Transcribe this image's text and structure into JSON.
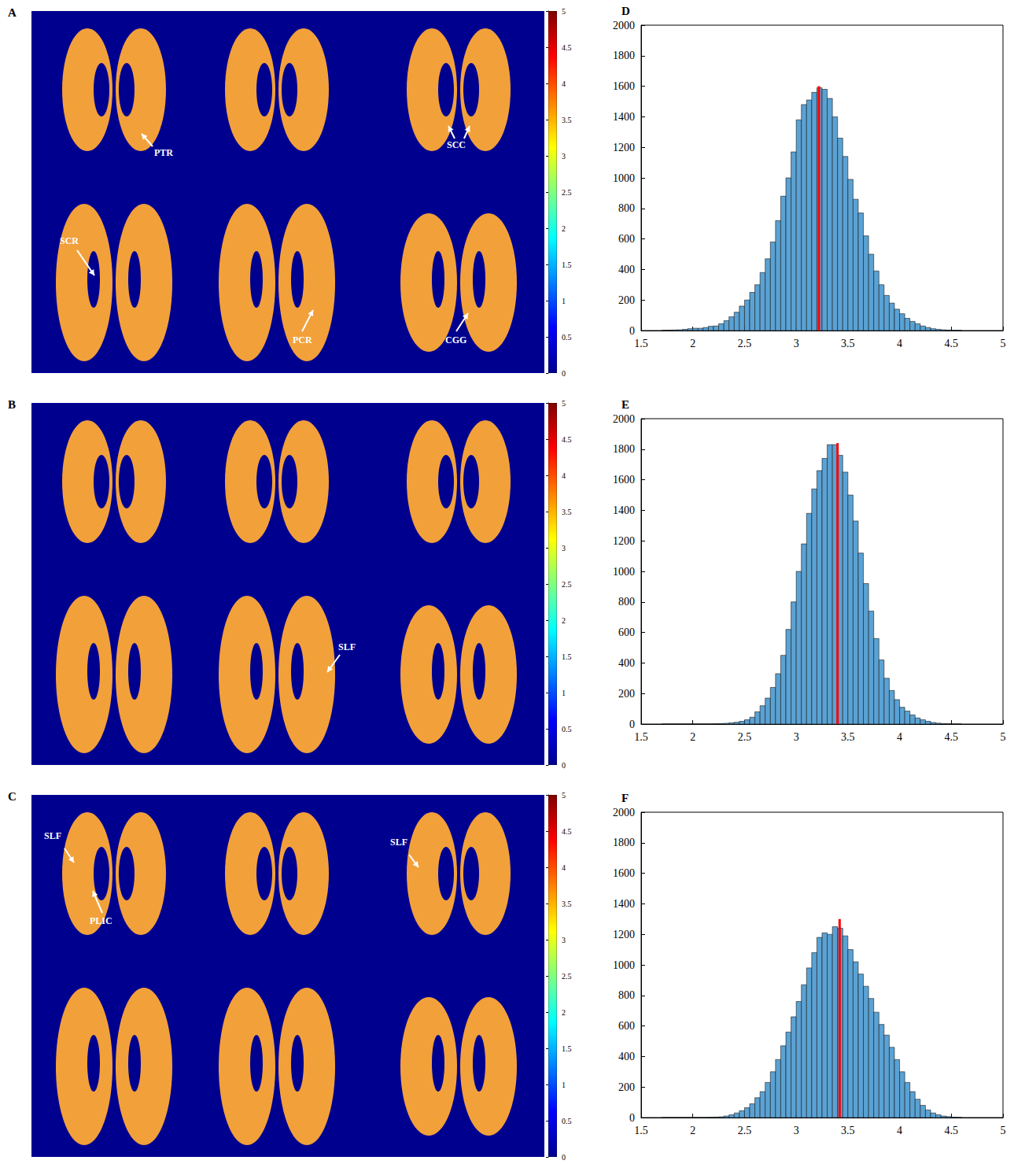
{
  "chart_data": [
    {
      "type": "map",
      "letter": "A",
      "annotations": [
        "PTR",
        "SCC",
        "SCR",
        "PCR",
        "CGG"
      ],
      "colorbar": {
        "range": [
          0,
          5
        ],
        "ticks": [
          0,
          0.5,
          1,
          1.5,
          2,
          2.5,
          3,
          3.5,
          4,
          4.5,
          5
        ]
      }
    },
    {
      "type": "map",
      "letter": "B",
      "annotations": [
        "SLF"
      ],
      "colorbar": {
        "range": [
          0,
          5
        ],
        "ticks": [
          0,
          0.5,
          1,
          1.5,
          2,
          2.5,
          3,
          3.5,
          4,
          4.5,
          5
        ]
      }
    },
    {
      "type": "map",
      "letter": "C",
      "annotations": [
        "SLF",
        "PLIC",
        "SLF"
      ],
      "colorbar": {
        "range": [
          0,
          5
        ],
        "ticks": [
          0,
          0.5,
          1,
          1.5,
          2,
          2.5,
          3,
          3.5,
          4,
          4.5,
          5
        ]
      }
    },
    {
      "type": "histogram",
      "letter": "D",
      "color": "#5aa2d4",
      "bins": [
        1.7,
        1.75,
        1.8,
        1.85,
        1.9,
        1.95,
        2,
        2.05,
        2.1,
        2.15,
        2.2,
        2.25,
        2.3,
        2.35,
        2.4,
        2.45,
        2.5,
        2.55,
        2.6,
        2.65,
        2.7,
        2.75,
        2.8,
        2.85,
        2.9,
        2.95,
        3,
        3.05,
        3.1,
        3.15,
        3.2,
        3.25,
        3.3,
        3.35,
        3.4,
        3.45,
        3.5,
        3.55,
        3.6,
        3.65,
        3.7,
        3.75,
        3.8,
        3.85,
        3.9,
        3.95,
        4,
        4.05,
        4.1,
        4.15,
        4.2,
        4.25,
        4.3,
        4.35,
        4.4,
        4.45,
        4.5,
        4.55,
        4.6
      ],
      "values": [
        2,
        3,
        4,
        5,
        8,
        12,
        15,
        15,
        20,
        28,
        30,
        45,
        65,
        90,
        120,
        160,
        200,
        250,
        300,
        380,
        470,
        580,
        720,
        880,
        1000,
        1170,
        1380,
        1480,
        1510,
        1560,
        1590,
        1580,
        1520,
        1400,
        1260,
        1140,
        990,
        860,
        770,
        620,
        500,
        390,
        300,
        230,
        180,
        140,
        110,
        80,
        60,
        45,
        30,
        20,
        12,
        8,
        5,
        3,
        2,
        1
      ],
      "xlim": [
        1.5,
        5
      ],
      "xticks": [
        1.5,
        2,
        2.5,
        3,
        3.5,
        4,
        4.5,
        5
      ],
      "ylim": [
        0,
        2000
      ],
      "yticks": [
        0,
        200,
        400,
        600,
        800,
        1000,
        1200,
        1400,
        1600,
        1800,
        2000
      ],
      "mean_line": {
        "x": 3.22,
        "y": 1600,
        "color": "#ff0000"
      }
    },
    {
      "type": "histogram",
      "letter": "E",
      "color": "#5aa2d4",
      "bins": [
        1.7,
        1.75,
        1.8,
        1.85,
        1.9,
        1.95,
        2,
        2.05,
        2.1,
        2.15,
        2.2,
        2.25,
        2.3,
        2.35,
        2.4,
        2.45,
        2.5,
        2.55,
        2.6,
        2.65,
        2.7,
        2.75,
        2.8,
        2.85,
        2.9,
        2.95,
        3,
        3.05,
        3.1,
        3.15,
        3.2,
        3.25,
        3.3,
        3.35,
        3.4,
        3.45,
        3.5,
        3.55,
        3.6,
        3.65,
        3.7,
        3.75,
        3.8,
        3.85,
        3.9,
        3.95,
        4,
        4.05,
        4.1,
        4.15,
        4.2,
        4.25,
        4.3,
        4.35,
        4.4,
        4.45,
        4.5,
        4.55,
        4.6
      ],
      "values": [
        0,
        0,
        0,
        0,
        0,
        0,
        0,
        0,
        0,
        0,
        2,
        3,
        5,
        8,
        12,
        18,
        28,
        45,
        80,
        120,
        170,
        240,
        330,
        450,
        620,
        800,
        1000,
        1180,
        1380,
        1540,
        1660,
        1740,
        1830,
        1830,
        1760,
        1650,
        1500,
        1330,
        1120,
        920,
        740,
        560,
        420,
        300,
        220,
        160,
        110,
        85,
        60,
        40,
        28,
        18,
        10,
        6,
        3,
        1,
        0,
        0
      ],
      "xlim": [
        1.5,
        5
      ],
      "xticks": [
        1.5,
        2,
        2.5,
        3,
        3.5,
        4,
        4.5,
        5
      ],
      "ylim": [
        0,
        2000
      ],
      "yticks": [
        0,
        200,
        400,
        600,
        800,
        1000,
        1200,
        1400,
        1600,
        1800,
        2000
      ],
      "mean_line": {
        "x": 3.4,
        "y": 1840,
        "color": "#ff0000"
      }
    },
    {
      "type": "histogram",
      "letter": "F",
      "color": "#5aa2d4",
      "bins": [
        1.7,
        1.75,
        1.8,
        1.85,
        1.9,
        1.95,
        2,
        2.05,
        2.1,
        2.15,
        2.2,
        2.25,
        2.3,
        2.35,
        2.4,
        2.45,
        2.5,
        2.55,
        2.6,
        2.65,
        2.7,
        2.75,
        2.8,
        2.85,
        2.9,
        2.95,
        3,
        3.05,
        3.1,
        3.15,
        3.2,
        3.25,
        3.3,
        3.35,
        3.4,
        3.45,
        3.5,
        3.55,
        3.6,
        3.65,
        3.7,
        3.75,
        3.8,
        3.85,
        3.9,
        3.95,
        4,
        4.05,
        4.1,
        4.15,
        4.2,
        4.25,
        4.3,
        4.35,
        4.4,
        4.45,
        4.5,
        4.55,
        4.6
      ],
      "values": [
        0,
        0,
        0,
        0,
        0,
        0,
        0,
        0,
        0,
        2,
        3,
        5,
        10,
        18,
        30,
        45,
        65,
        90,
        130,
        170,
        230,
        300,
        380,
        470,
        560,
        660,
        760,
        870,
        980,
        1080,
        1180,
        1210,
        1200,
        1250,
        1240,
        1190,
        1100,
        1020,
        940,
        860,
        780,
        690,
        610,
        540,
        460,
        380,
        300,
        230,
        170,
        120,
        80,
        50,
        30,
        18,
        10,
        6,
        3,
        1
      ],
      "xlim": [
        1.5,
        5
      ],
      "xticks": [
        1.5,
        2,
        2.5,
        3,
        3.5,
        4,
        4.5,
        5
      ],
      "ylim": [
        0,
        2000
      ],
      "yticks": [
        0,
        200,
        400,
        600,
        800,
        1000,
        1200,
        1400,
        1600,
        1800,
        2000
      ],
      "mean_line": {
        "x": 3.42,
        "y": 1300,
        "color": "#ff0000"
      }
    }
  ]
}
